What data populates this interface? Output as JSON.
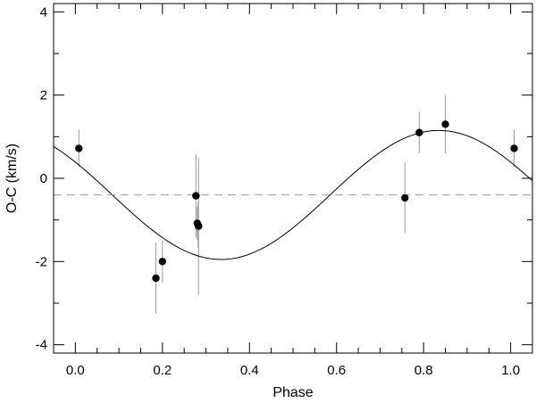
{
  "chart_data": {
    "type": "scatter",
    "xlabel": "Phase",
    "ylabel": "O-C (km/s)",
    "xlim": [
      -0.05,
      1.05
    ],
    "ylim": [
      -4.2,
      4.2
    ],
    "xticks": [
      0.0,
      0.2,
      0.4,
      0.6,
      0.8,
      1.0
    ],
    "xtick_labels": [
      "0.0",
      "0.2",
      "0.4",
      "0.6",
      "0.8",
      "1.0"
    ],
    "yticks": [
      -4,
      -2,
      0,
      2,
      4
    ],
    "ytick_labels": [
      "-4",
      "-2",
      "0",
      "2",
      "4"
    ],
    "grid": false,
    "series": [
      {
        "kind": "points_with_errorbars",
        "x": [
          0.008,
          0.185,
          0.2,
          0.277,
          0.28,
          0.282,
          0.283,
          0.757,
          0.79,
          0.85,
          1.008
        ],
        "y": [
          0.72,
          -2.4,
          -2.0,
          -0.42,
          -1.08,
          -1.12,
          -1.15,
          -0.47,
          1.1,
          1.3,
          0.72
        ],
        "yerr": [
          0.45,
          0.85,
          0.5,
          1.0,
          0.4,
          0.55,
          1.65,
          0.85,
          0.5,
          0.7,
          0.45
        ],
        "color": "#000000",
        "errorbar_color": "#999999"
      },
      {
        "kind": "sine_fit",
        "offset": -0.4,
        "amplitude": 1.55,
        "phase_of_max": 0.835,
        "color": "#000000"
      },
      {
        "kind": "reference_line",
        "style": "dashed",
        "y": -0.4,
        "color": "#999999"
      }
    ]
  }
}
